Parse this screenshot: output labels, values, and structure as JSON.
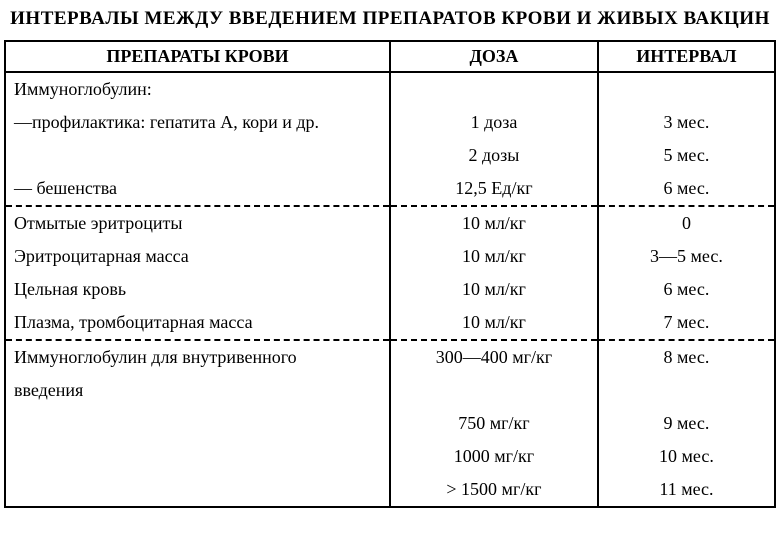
{
  "title": "ИНТЕРВАЛЫ МЕЖДУ ВВЕДЕНИЕМ ПРЕПАРАТОВ КРОВИ И ЖИВЫХ ВАКЦИН",
  "table": {
    "columns": [
      "ПРЕПАРАТЫ КРОВИ",
      "ДОЗА",
      "ИНТЕРВАЛ"
    ],
    "col_widths_pct": [
      50,
      27,
      23
    ],
    "border_color": "#000000",
    "border_width": 2,
    "dash_pattern": "dashed",
    "header_fontsize": 18,
    "body_fontsize": 18,
    "sections": [
      {
        "rows": [
          [
            "Иммуноглобулин:",
            "",
            ""
          ],
          [
            "—профилактика: гепатита А, кори и др.",
            "1 доза",
            "3 мес."
          ],
          [
            "",
            "2 дозы",
            "5 мес."
          ],
          [
            "— бешенства",
            "12,5 Ед/кг",
            "6 мес."
          ]
        ]
      },
      {
        "rows": [
          [
            "Отмытые эритроциты",
            "10 мл/кг",
            "0"
          ],
          [
            "Эритроцитарная масса",
            "10 мл/кг",
            "3—5 мес."
          ],
          [
            "Цельная кровь",
            "10 мл/кг",
            "6 мес."
          ],
          [
            "Плазма, тромбоцитарная масса",
            "10 мл/кг",
            "7 мес."
          ]
        ]
      },
      {
        "rows": [
          [
            "Иммуноглобулин для внутривенного",
            "300—400 мг/кг",
            "8 мес."
          ],
          [
            "введения",
            "",
            ""
          ],
          [
            "",
            "750 мг/кг",
            "9 мес."
          ],
          [
            "",
            "1000 мг/кг",
            "10 мес."
          ],
          [
            "",
            "> 1500 мг/кг",
            "11 мес."
          ]
        ]
      }
    ]
  }
}
